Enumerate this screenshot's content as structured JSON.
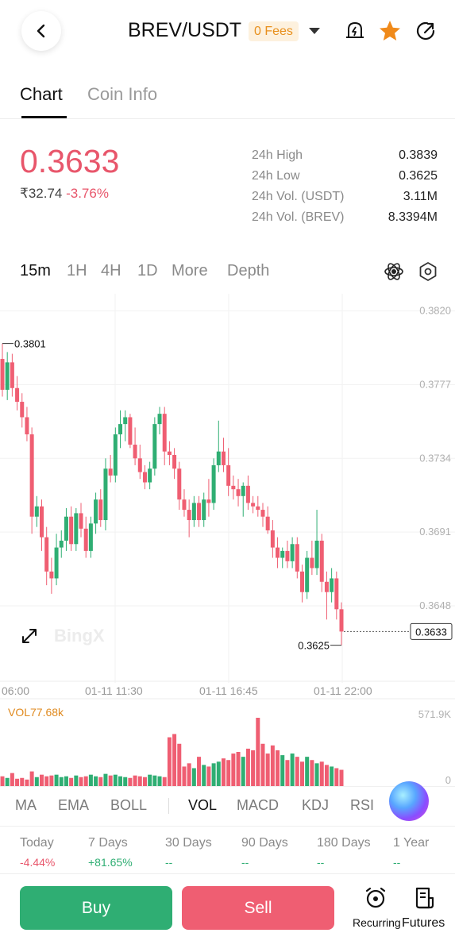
{
  "header": {
    "pair": "BREV/USDT",
    "fees_badge": "0 Fees",
    "icons": [
      "back-arrow-icon",
      "price-alert-bell-icon",
      "favorite-star-icon",
      "share-icon"
    ],
    "star_color": "#f08a1a"
  },
  "tabs": [
    {
      "label": "Chart",
      "active": true
    },
    {
      "label": "Coin Info",
      "active": false
    }
  ],
  "price": {
    "last": "0.3633",
    "inr_value": "₹32.74",
    "change_pct": "-3.76%",
    "color": "#e8566b"
  },
  "stats": [
    {
      "label": "24h High",
      "value": "0.3839"
    },
    {
      "label": "24h Low",
      "value": "0.3625"
    },
    {
      "label": "24h Vol. (USDT)",
      "value": "3.11M"
    },
    {
      "label": "24h Vol. (BREV)",
      "value": "8.3394M"
    }
  ],
  "intervals": [
    {
      "label": "15m",
      "active": true
    },
    {
      "label": "1H",
      "active": false
    },
    {
      "label": "4H",
      "active": false
    },
    {
      "label": "1D",
      "active": false
    },
    {
      "label": "More",
      "active": false
    },
    {
      "label": "Depth",
      "active": false
    }
  ],
  "chart_data": {
    "type": "candlestick",
    "y_ticks": [
      "0.3820",
      "0.3777",
      "0.3734",
      "0.3691",
      "0.3648"
    ],
    "ylim": [
      0.3604,
      0.383
    ],
    "x_ticks": [
      "06:00",
      "01-11 11:30",
      "01-11 16:45",
      "01-11 22:00"
    ],
    "annotations": {
      "high_marker": "0.3801",
      "low_marker": "0.3625",
      "last_price_label": "0.3633"
    },
    "watermark": "BingX",
    "candles": [
      {
        "o": 0.3792,
        "h": 0.3801,
        "l": 0.377,
        "c": 0.3774
      },
      {
        "o": 0.3774,
        "h": 0.3796,
        "l": 0.3768,
        "c": 0.379
      },
      {
        "o": 0.379,
        "h": 0.3795,
        "l": 0.377,
        "c": 0.3775
      },
      {
        "o": 0.3775,
        "h": 0.3782,
        "l": 0.3762,
        "c": 0.3767
      },
      {
        "o": 0.3767,
        "h": 0.3772,
        "l": 0.3752,
        "c": 0.3758
      },
      {
        "o": 0.3758,
        "h": 0.3764,
        "l": 0.3744,
        "c": 0.3748
      },
      {
        "o": 0.3748,
        "h": 0.3752,
        "l": 0.369,
        "c": 0.37
      },
      {
        "o": 0.37,
        "h": 0.3712,
        "l": 0.3694,
        "c": 0.3706
      },
      {
        "o": 0.3706,
        "h": 0.371,
        "l": 0.368,
        "c": 0.3688
      },
      {
        "o": 0.3688,
        "h": 0.3694,
        "l": 0.366,
        "c": 0.3668
      },
      {
        "o": 0.3668,
        "h": 0.3676,
        "l": 0.3655,
        "c": 0.3664
      },
      {
        "o": 0.3664,
        "h": 0.369,
        "l": 0.366,
        "c": 0.3682
      },
      {
        "o": 0.3682,
        "h": 0.3692,
        "l": 0.3676,
        "c": 0.3686
      },
      {
        "o": 0.3686,
        "h": 0.3705,
        "l": 0.368,
        "c": 0.37
      },
      {
        "o": 0.37,
        "h": 0.3706,
        "l": 0.368,
        "c": 0.3684
      },
      {
        "o": 0.3684,
        "h": 0.3705,
        "l": 0.368,
        "c": 0.3702
      },
      {
        "o": 0.3702,
        "h": 0.3708,
        "l": 0.3688,
        "c": 0.3693
      },
      {
        "o": 0.3693,
        "h": 0.37,
        "l": 0.3676,
        "c": 0.368
      },
      {
        "o": 0.368,
        "h": 0.37,
        "l": 0.3676,
        "c": 0.3696
      },
      {
        "o": 0.3696,
        "h": 0.3714,
        "l": 0.369,
        "c": 0.371
      },
      {
        "o": 0.371,
        "h": 0.3716,
        "l": 0.3694,
        "c": 0.3698
      },
      {
        "o": 0.3698,
        "h": 0.3734,
        "l": 0.3692,
        "c": 0.3728
      },
      {
        "o": 0.3728,
        "h": 0.3736,
        "l": 0.372,
        "c": 0.3724
      },
      {
        "o": 0.3724,
        "h": 0.3752,
        "l": 0.372,
        "c": 0.3748
      },
      {
        "o": 0.3748,
        "h": 0.3762,
        "l": 0.374,
        "c": 0.3754
      },
      {
        "o": 0.3754,
        "h": 0.3762,
        "l": 0.3744,
        "c": 0.3758
      },
      {
        "o": 0.3758,
        "h": 0.376,
        "l": 0.374,
        "c": 0.3742
      },
      {
        "o": 0.3742,
        "h": 0.3752,
        "l": 0.373,
        "c": 0.3734
      },
      {
        "o": 0.3734,
        "h": 0.3742,
        "l": 0.3722,
        "c": 0.3726
      },
      {
        "o": 0.3726,
        "h": 0.373,
        "l": 0.3716,
        "c": 0.372
      },
      {
        "o": 0.372,
        "h": 0.3732,
        "l": 0.3716,
        "c": 0.3728
      },
      {
        "o": 0.3728,
        "h": 0.3758,
        "l": 0.3724,
        "c": 0.3754
      },
      {
        "o": 0.3754,
        "h": 0.3764,
        "l": 0.3748,
        "c": 0.376
      },
      {
        "o": 0.376,
        "h": 0.3764,
        "l": 0.373,
        "c": 0.3738
      },
      {
        "o": 0.3738,
        "h": 0.3744,
        "l": 0.373,
        "c": 0.3736
      },
      {
        "o": 0.3736,
        "h": 0.374,
        "l": 0.3722,
        "c": 0.3728
      },
      {
        "o": 0.3728,
        "h": 0.3732,
        "l": 0.3704,
        "c": 0.371
      },
      {
        "o": 0.371,
        "h": 0.3716,
        "l": 0.37,
        "c": 0.3704
      },
      {
        "o": 0.3704,
        "h": 0.371,
        "l": 0.3688,
        "c": 0.3698
      },
      {
        "o": 0.3698,
        "h": 0.3712,
        "l": 0.3694,
        "c": 0.3708
      },
      {
        "o": 0.3708,
        "h": 0.3712,
        "l": 0.3694,
        "c": 0.3698
      },
      {
        "o": 0.3698,
        "h": 0.3714,
        "l": 0.3694,
        "c": 0.371
      },
      {
        "o": 0.371,
        "h": 0.3722,
        "l": 0.37,
        "c": 0.3708
      },
      {
        "o": 0.3708,
        "h": 0.3734,
        "l": 0.3704,
        "c": 0.373
      },
      {
        "o": 0.373,
        "h": 0.3756,
        "l": 0.3726,
        "c": 0.3738
      },
      {
        "o": 0.3738,
        "h": 0.3746,
        "l": 0.3726,
        "c": 0.373
      },
      {
        "o": 0.373,
        "h": 0.374,
        "l": 0.3712,
        "c": 0.3718
      },
      {
        "o": 0.3718,
        "h": 0.3724,
        "l": 0.371,
        "c": 0.3716
      },
      {
        "o": 0.3716,
        "h": 0.3722,
        "l": 0.3706,
        "c": 0.3712
      },
      {
        "o": 0.3712,
        "h": 0.372,
        "l": 0.37,
        "c": 0.3718
      },
      {
        "o": 0.3718,
        "h": 0.3724,
        "l": 0.3704,
        "c": 0.3708
      },
      {
        "o": 0.3708,
        "h": 0.3712,
        "l": 0.3702,
        "c": 0.3706
      },
      {
        "o": 0.3706,
        "h": 0.3712,
        "l": 0.37,
        "c": 0.3704
      },
      {
        "o": 0.3704,
        "h": 0.3708,
        "l": 0.3694,
        "c": 0.37
      },
      {
        "o": 0.37,
        "h": 0.3706,
        "l": 0.369,
        "c": 0.3692
      },
      {
        "o": 0.3692,
        "h": 0.3698,
        "l": 0.3676,
        "c": 0.3682
      },
      {
        "o": 0.3682,
        "h": 0.3688,
        "l": 0.367,
        "c": 0.3676
      },
      {
        "o": 0.3676,
        "h": 0.3682,
        "l": 0.367,
        "c": 0.368
      },
      {
        "o": 0.368,
        "h": 0.3686,
        "l": 0.367,
        "c": 0.3674
      },
      {
        "o": 0.3674,
        "h": 0.3688,
        "l": 0.367,
        "c": 0.3684
      },
      {
        "o": 0.3684,
        "h": 0.3688,
        "l": 0.3664,
        "c": 0.3668
      },
      {
        "o": 0.3668,
        "h": 0.3672,
        "l": 0.365,
        "c": 0.3656
      },
      {
        "o": 0.3656,
        "h": 0.368,
        "l": 0.3652,
        "c": 0.3676
      },
      {
        "o": 0.3676,
        "h": 0.3686,
        "l": 0.3666,
        "c": 0.367
      },
      {
        "o": 0.367,
        "h": 0.3704,
        "l": 0.3666,
        "c": 0.3686
      },
      {
        "o": 0.3686,
        "h": 0.369,
        "l": 0.3656,
        "c": 0.3662
      },
      {
        "o": 0.3662,
        "h": 0.3668,
        "l": 0.364,
        "c": 0.3656
      },
      {
        "o": 0.3656,
        "h": 0.367,
        "l": 0.365,
        "c": 0.3664
      },
      {
        "o": 0.3664,
        "h": 0.3668,
        "l": 0.364,
        "c": 0.3646
      },
      {
        "o": 0.3646,
        "h": 0.365,
        "l": 0.3625,
        "c": 0.3633
      }
    ],
    "volume": {
      "label": "VOL77.68k",
      "max_label": "571.9K",
      "zero_label": "0",
      "max": 571900,
      "values": [
        60,
        50,
        80,
        45,
        50,
        40,
        90,
        55,
        70,
        60,
        65,
        70,
        55,
        60,
        50,
        65,
        55,
        60,
        70,
        60,
        55,
        75,
        65,
        70,
        60,
        55,
        50,
        65,
        60,
        55,
        70,
        65,
        60,
        55,
        300,
        320,
        260,
        120,
        140,
        110,
        180,
        130,
        120,
        140,
        150,
        170,
        160,
        200,
        210,
        180,
        230,
        220,
        420,
        260,
        200,
        250,
        220,
        190,
        160,
        200,
        180,
        150,
        180,
        160,
        140,
        150,
        130,
        120,
        110,
        100
      ],
      "colors_up": "#2fae73",
      "colors_down": "#ef5e72"
    }
  },
  "indicators": [
    {
      "label": "MA",
      "active": false
    },
    {
      "label": "EMA",
      "active": false
    },
    {
      "label": "BOLL",
      "active": false
    },
    {
      "label": "VOL",
      "active": true
    },
    {
      "label": "MACD",
      "active": false
    },
    {
      "label": "KDJ",
      "active": false
    },
    {
      "label": "RSI",
      "active": false
    }
  ],
  "performance": [
    {
      "label": "Today",
      "value": "-4.44%",
      "kind": "neg"
    },
    {
      "label": "7 Days",
      "value": "+81.65%",
      "kind": "pos"
    },
    {
      "label": "30 Days",
      "value": "--",
      "kind": "neu"
    },
    {
      "label": "90 Days",
      "value": "--",
      "kind": "neu"
    },
    {
      "label": "180 Days",
      "value": "--",
      "kind": "neu"
    },
    {
      "label": "1 Year",
      "value": "--",
      "kind": "neu"
    }
  ],
  "bottom": {
    "buy": "Buy",
    "sell": "Sell",
    "recurring": "Recurring",
    "futures": "Futures"
  }
}
